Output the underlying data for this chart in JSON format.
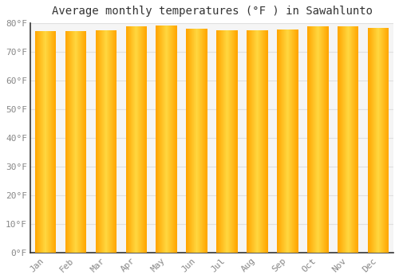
{
  "title": "Average monthly temperatures (°F ) in Sawahlunto",
  "months": [
    "Jan",
    "Feb",
    "Mar",
    "Apr",
    "May",
    "Jun",
    "Jul",
    "Aug",
    "Sep",
    "Oct",
    "Nov",
    "Dec"
  ],
  "values": [
    77.2,
    77.2,
    77.5,
    79.0,
    79.3,
    78.1,
    77.5,
    77.5,
    77.9,
    79.0,
    79.0,
    78.3
  ],
  "bar_color_center": "#FFD740",
  "bar_color_edge": "#FFA500",
  "background_color": "#FFFFFF",
  "plot_bg_color": "#F5F5F5",
  "grid_color": "#E0E0E0",
  "ylim": [
    0,
    80
  ],
  "yticks": [
    0,
    10,
    20,
    30,
    40,
    50,
    60,
    70,
    80
  ],
  "ytick_labels": [
    "0°F",
    "10°F",
    "20°F",
    "30°F",
    "40°F",
    "50°F",
    "60°F",
    "70°F",
    "80°F"
  ],
  "title_fontsize": 10,
  "tick_fontsize": 8,
  "tick_color": "#888888",
  "spine_color": "#333333"
}
